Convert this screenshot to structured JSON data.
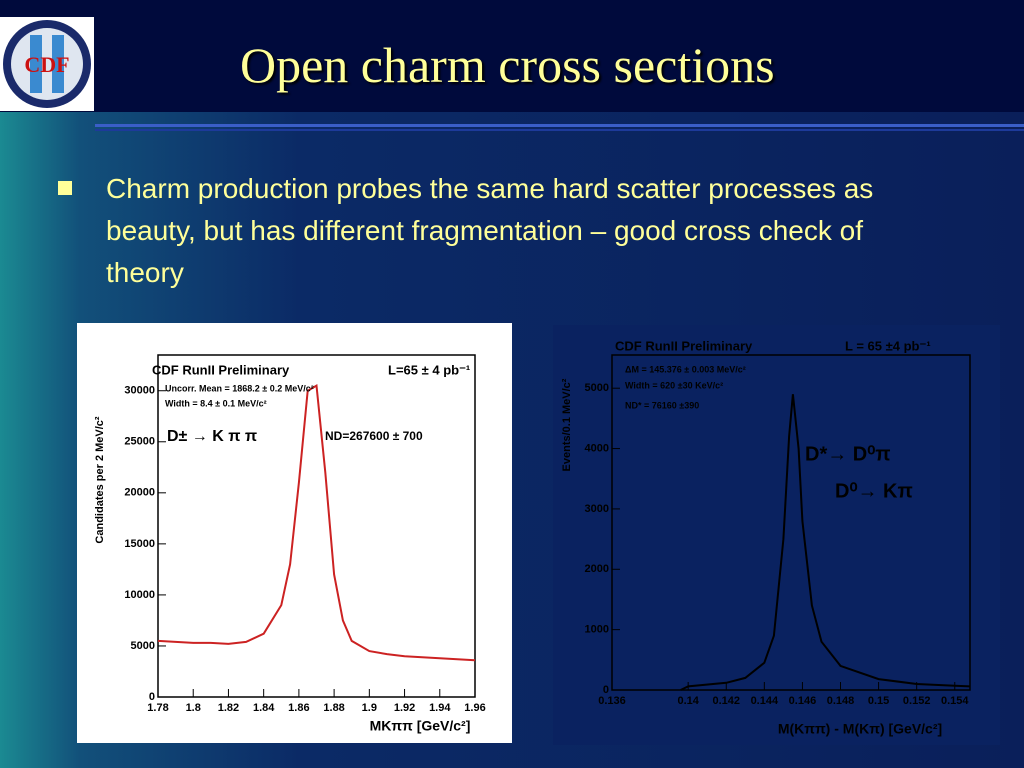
{
  "slide": {
    "logo_text": "CDF",
    "title": "Open charm cross sections",
    "bullet": "Charm production probes the same hard scatter processes as beauty, but has different fragmentation – good cross check of theory"
  },
  "chart_data": [
    {
      "type": "line",
      "title": "CDF RunII Preliminary",
      "annotations": [
        "L=65 ± 4 pb⁻¹",
        "Uncorr. Mean = 1868.2 ± 0.2 MeV/c²",
        "Width = 8.4 ± 0.1 MeV/c²",
        "D± → K π π",
        "ND=267600 ± 700"
      ],
      "x_label": "MKππ [GeV/c²]",
      "y_label": "Candidates per 2 MeV/c²",
      "x": [
        1.78,
        1.79,
        1.8,
        1.81,
        1.82,
        1.83,
        1.84,
        1.85,
        1.855,
        1.86,
        1.865,
        1.87,
        1.875,
        1.88,
        1.885,
        1.89,
        1.9,
        1.91,
        1.92,
        1.93,
        1.94,
        1.95,
        1.96
      ],
      "values": [
        5500,
        5400,
        5300,
        5300,
        5200,
        5400,
        6200,
        9000,
        13000,
        21000,
        30000,
        30500,
        22000,
        12000,
        7500,
        5500,
        4500,
        4200,
        4000,
        3900,
        3800,
        3700,
        3600
      ],
      "color": "#cc2222",
      "xlim": [
        1.78,
        1.96
      ],
      "xticks": [
        1.78,
        1.8,
        1.82,
        1.84,
        1.86,
        1.88,
        1.9,
        1.92,
        1.94,
        1.96
      ],
      "ylim": [
        0,
        33500
      ],
      "yticks": [
        0,
        5000,
        10000,
        15000,
        20000,
        25000,
        30000
      ]
    },
    {
      "type": "line",
      "title": "CDF RunII Preliminary",
      "annotations": [
        "L = 65 ±4 pb⁻¹",
        "ΔM = 145.376 ± 0.003 MeV/c²",
        "Width = 620 ±30 KeV/c²",
        "ND* = 76160 ±390",
        "D*→ D⁰π",
        "D⁰→ Kπ"
      ],
      "x_label": "M(Kππ) - M(Kπ) [GeV/c²]",
      "y_label": "Events/0.1 MeV/c²",
      "x": [
        0.1396,
        0.14,
        0.142,
        0.143,
        0.144,
        0.1445,
        0.145,
        0.1453,
        0.1455,
        0.1458,
        0.146,
        0.1465,
        0.147,
        0.148,
        0.15,
        0.152,
        0.154,
        0.1548
      ],
      "values": [
        0,
        60,
        120,
        200,
        450,
        900,
        2500,
        4200,
        4900,
        4000,
        2800,
        1400,
        800,
        400,
        180,
        100,
        70,
        60
      ],
      "color": "#000000",
      "xlim": [
        0.136,
        0.1548
      ],
      "xticks": [
        0.136,
        0.14,
        0.142,
        0.144,
        0.146,
        0.148,
        0.15,
        0.152,
        0.154
      ],
      "ylim": [
        0,
        5550
      ],
      "yticks": [
        0,
        1000,
        2000,
        3000,
        4000,
        5000
      ]
    }
  ]
}
